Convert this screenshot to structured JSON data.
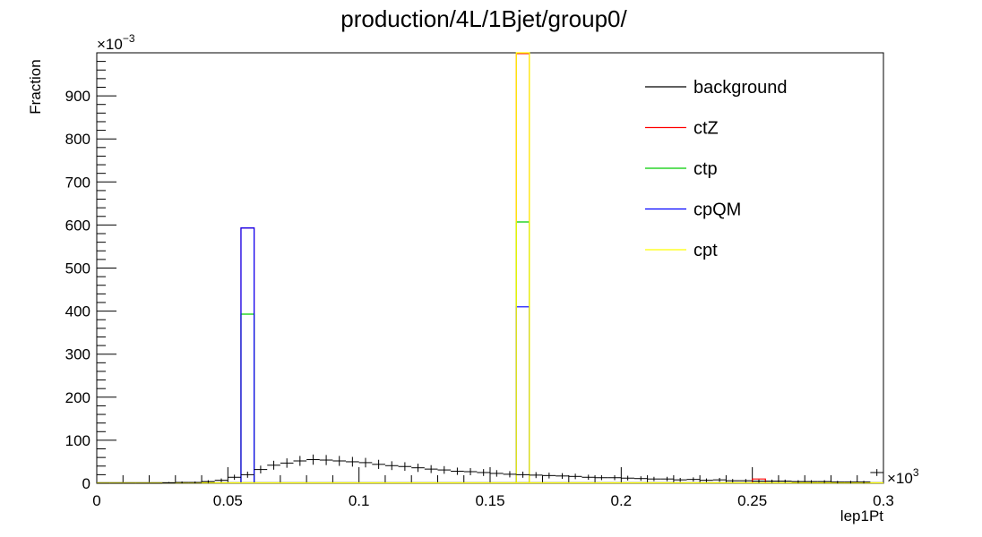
{
  "chart_data": {
    "type": "histogram",
    "title": "production/4L/1Bjet/group0/",
    "xlabel": "lep1Pt",
    "ylabel": "Fraction",
    "x_multiplier": "×10",
    "x_multiplier_exp": "3",
    "y_multiplier": "×10",
    "y_multiplier_exp": "−3",
    "xlim": [
      0,
      0.3
    ],
    "ylim": [
      0,
      1000
    ],
    "x_ticks": [
      0,
      0.05,
      0.1,
      0.15,
      0.2,
      0.25,
      0.3
    ],
    "x_tick_labels": [
      "0",
      "0.05",
      "0.1",
      "0.15",
      "0.2",
      "0.25",
      "0.3"
    ],
    "y_ticks": [
      0,
      100,
      200,
      300,
      400,
      500,
      600,
      700,
      800,
      900
    ],
    "y_tick_labels": [
      "0",
      "100",
      "200",
      "300",
      "400",
      "500",
      "600",
      "700",
      "800",
      "900"
    ],
    "bin_width": 0.005,
    "legend_position": "top-right",
    "series": [
      {
        "name": "background",
        "color": "#000000",
        "style": "errorbars",
        "values": [
          0,
          0,
          0,
          0,
          0,
          1,
          2,
          2,
          4,
          7,
          14,
          20,
          32,
          42,
          47,
          52,
          55,
          54,
          52,
          50,
          48,
          44,
          41,
          39,
          36,
          33,
          31,
          28,
          27,
          25,
          23,
          21,
          20,
          19,
          18,
          17,
          16,
          14,
          13,
          13,
          12,
          11,
          10,
          10,
          8,
          9,
          7,
          8,
          6,
          6,
          5,
          5,
          5,
          4,
          4,
          4,
          3,
          3,
          3,
          25,
          3,
          2,
          3,
          2,
          2,
          2,
          2,
          2,
          1,
          2
        ]
      },
      {
        "name": "ctZ",
        "color": "#ff0000",
        "style": "step",
        "spikes": [
          {
            "x_low": 0.055,
            "x_high": 0.06,
            "y": 593
          },
          {
            "x_low": 0.16,
            "x_high": 0.165,
            "y": 998
          },
          {
            "x_low": 0.25,
            "x_high": 0.255,
            "y": 10
          }
        ]
      },
      {
        "name": "ctp",
        "color": "#00cc00",
        "style": "step",
        "spikes": [
          {
            "x_low": 0.055,
            "x_high": 0.06,
            "y": 393
          },
          {
            "x_low": 0.16,
            "x_high": 0.165,
            "y": 607
          }
        ]
      },
      {
        "name": "cpQM",
        "color": "#0000ff",
        "style": "step",
        "spikes": [
          {
            "x_low": 0.055,
            "x_high": 0.06,
            "y": 593
          },
          {
            "x_low": 0.16,
            "x_high": 0.165,
            "y": 410
          }
        ]
      },
      {
        "name": "cpt",
        "color": "#ffff00",
        "style": "step",
        "spikes": [
          {
            "x_low": 0.16,
            "x_high": 0.165,
            "y": 1000
          }
        ]
      }
    ]
  }
}
